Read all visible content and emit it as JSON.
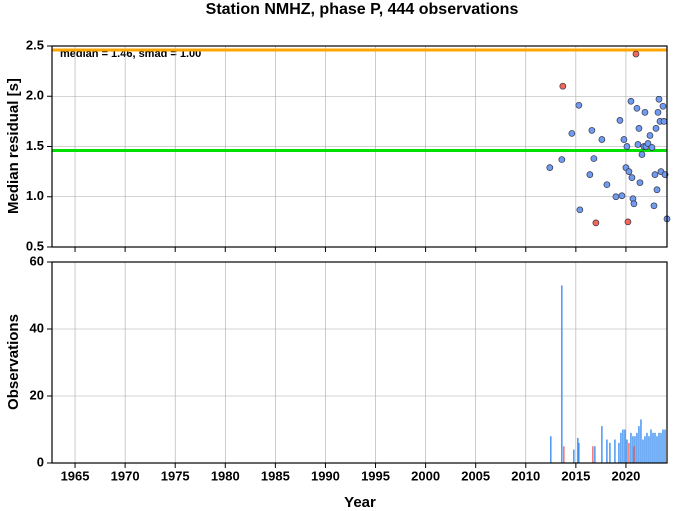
{
  "chart_data": [
    {
      "type": "scatter",
      "title": "Station NMHZ, phase P, 444 observations",
      "ylabel": "Median residual [s]",
      "annotation": "median = 1.46, smad = 1.00",
      "xlim": [
        1962.7,
        2024.1
      ],
      "xticks": [
        1965,
        1970,
        1975,
        1980,
        1985,
        1990,
        1995,
        2000,
        2005,
        2010,
        2015,
        2020
      ],
      "ylim": [
        0.5,
        2.5
      ],
      "yticks": [
        0.5,
        {
          "value": 1.0,
          "label": "1.0"
        },
        1.5,
        {
          "value": 2.0,
          "label": "2.0"
        },
        2.5
      ],
      "grid": true,
      "hlines": [
        {
          "value": 2.46,
          "color": "#ffa500"
        },
        {
          "value": 1.46,
          "color": "#00e000"
        }
      ],
      "series": [
        {
          "color": "#6f9cf0",
          "x": [
            2012.4,
            2013.6,
            2014.6,
            2015.3,
            2015.4,
            2016.4,
            2016.6,
            2016.8,
            2017.6,
            2018.1,
            2019.0,
            2019.4,
            2019.6,
            2019.8,
            2020.1,
            2020.0,
            2020.3,
            2020.5,
            2020.6,
            2020.7,
            2020.8,
            2021.1,
            2021.2,
            2021.3,
            2021.4,
            2021.6,
            2021.8,
            2021.9,
            2022.0,
            2022.2,
            2022.4,
            2022.6,
            2022.8,
            2022.9,
            2023.0,
            2023.1,
            2023.2,
            2023.3,
            2023.4,
            2023.5,
            2023.7,
            2023.8,
            2023.9,
            2024.1
          ],
          "values": [
            1.29,
            1.37,
            1.63,
            1.91,
            0.87,
            1.22,
            1.66,
            1.38,
            1.57,
            1.12,
            1.0,
            1.76,
            1.01,
            1.57,
            1.5,
            1.29,
            1.25,
            1.95,
            1.19,
            0.98,
            0.93,
            1.88,
            1.52,
            1.68,
            1.14,
            1.42,
            1.5,
            1.84,
            1.5,
            1.53,
            1.61,
            1.49,
            0.91,
            1.22,
            1.68,
            1.07,
            1.84,
            1.97,
            1.75,
            1.25,
            1.9,
            1.75,
            1.22,
            0.78
          ]
        },
        {
          "color": "#f4655a",
          "x": [
            2013.7,
            2021.0,
            2017.0,
            2020.2
          ],
          "values": [
            2.1,
            2.42,
            0.74,
            0.75
          ]
        }
      ]
    },
    {
      "type": "bar",
      "xlabel": "Year",
      "ylabel": "Observations",
      "xlim": [
        1962.7,
        2024.1
      ],
      "xticks": [
        1965,
        1970,
        1975,
        1980,
        1985,
        1990,
        1995,
        2000,
        2005,
        2010,
        2015,
        2020
      ],
      "ylim": [
        0,
        60
      ],
      "yticks": [
        0,
        20,
        40,
        60
      ],
      "grid": true,
      "series": [
        {
          "color": "#3d8ff0",
          "x": [
            2012.5,
            2013.6,
            2014.8,
            2015.2,
            2015.3,
            2016.9,
            2017.6,
            2018.1,
            2018.4,
            2018.9,
            2019.3,
            2019.5,
            2019.7,
            2019.9,
            2020.1,
            2020.5,
            2020.7,
            2020.9,
            2021.1,
            2021.3,
            2021.5,
            2021.7,
            2021.9,
            2022.1,
            2022.3,
            2022.5,
            2022.7,
            2022.9,
            2023.1,
            2023.3,
            2023.5,
            2023.7,
            2023.9
          ],
          "values": [
            8,
            53,
            4,
            7.5,
            6,
            5,
            11,
            7,
            6,
            7,
            6,
            9,
            10,
            10,
            7,
            9,
            8,
            8,
            9,
            11,
            13,
            7,
            8,
            9,
            8,
            10,
            9,
            9,
            8,
            9,
            9,
            10,
            10
          ]
        },
        {
          "color": "#f4655a",
          "x": [
            2013.8,
            2016.7,
            2020.3,
            2020.8
          ],
          "values": [
            5,
            5,
            6,
            5
          ]
        }
      ]
    }
  ]
}
